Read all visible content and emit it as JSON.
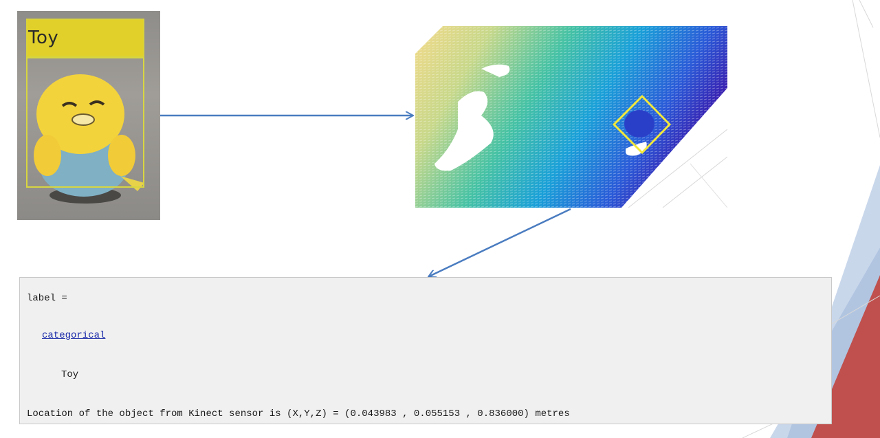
{
  "detection": {
    "label": "Toy"
  },
  "console": {
    "var_line": "label =",
    "class_link": "categorical",
    "value": "Toy",
    "location_line": "Location of the object from Kinect sensor is (X,Y,Z) = (0.043983 , 0.055153 , 0.836000) metres"
  },
  "colors": {
    "label_bar": "#e1d02a",
    "bounding_box": "#d8d640",
    "arrow": "#4a7cc0",
    "link": "#1a2aa8",
    "accent_red": "#c0504d",
    "accent_blue": "#c6d5ea"
  }
}
